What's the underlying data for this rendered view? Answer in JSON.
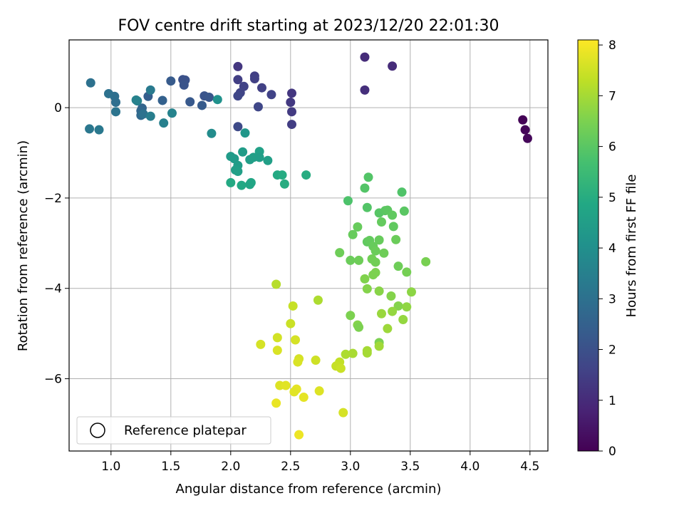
{
  "chart_data": {
    "type": "scatter",
    "title": "FOV centre drift starting at 2023/12/20 22:01:30",
    "xlabel": "Angular distance from reference (arcmin)",
    "ylabel": "Rotation from reference (arcmin)",
    "xlim": [
      0.65,
      4.65
    ],
    "ylim": [
      -7.6,
      1.5
    ],
    "xticks": [
      "1.0",
      "1.5",
      "2.0",
      "2.5",
      "3.0",
      "3.5",
      "4.0",
      "4.5"
    ],
    "xtick_values": [
      1.0,
      1.5,
      2.0,
      2.5,
      3.0,
      3.5,
      4.0,
      4.5
    ],
    "yticks": [
      "−6",
      "−4",
      "−2",
      "0"
    ],
    "ytick_values": [
      -6,
      -4,
      -2,
      0
    ],
    "grid": true,
    "legend": {
      "position": "lower-left",
      "entries": [
        "Reference platepar"
      ]
    },
    "colorbar": {
      "label": "Hours from first FF file",
      "range": [
        0,
        8.1
      ],
      "ticks": [
        "0",
        "1",
        "2",
        "3",
        "4",
        "5",
        "6",
        "7",
        "8"
      ],
      "tick_values": [
        0,
        1,
        2,
        3,
        4,
        5,
        6,
        7,
        8
      ],
      "colormap": "viridis"
    },
    "points": [
      {
        "x": 4.44,
        "y": -0.27,
        "t": 0.05
      },
      {
        "x": 4.46,
        "y": -0.49,
        "t": 0.1
      },
      {
        "x": 4.48,
        "y": -0.68,
        "t": 0.15
      },
      {
        "x": 3.12,
        "y": 1.12,
        "t": 1.0
      },
      {
        "x": 3.35,
        "y": 0.92,
        "t": 1.0
      },
      {
        "x": 3.12,
        "y": 0.39,
        "t": 1.1
      },
      {
        "x": 2.06,
        "y": 0.91,
        "t": 1.3
      },
      {
        "x": 2.51,
        "y": 0.32,
        "t": 1.3
      },
      {
        "x": 2.5,
        "y": 0.12,
        "t": 1.35
      },
      {
        "x": 2.51,
        "y": -0.09,
        "t": 1.4
      },
      {
        "x": 2.51,
        "y": -0.37,
        "t": 1.45
      },
      {
        "x": 2.06,
        "y": 0.62,
        "t": 1.5
      },
      {
        "x": 2.2,
        "y": 0.7,
        "t": 1.5
      },
      {
        "x": 2.2,
        "y": 0.64,
        "t": 1.55
      },
      {
        "x": 2.26,
        "y": 0.44,
        "t": 1.55
      },
      {
        "x": 2.11,
        "y": 0.47,
        "t": 1.6
      },
      {
        "x": 2.08,
        "y": 0.33,
        "t": 1.65
      },
      {
        "x": 2.06,
        "y": 0.26,
        "t": 1.7
      },
      {
        "x": 2.34,
        "y": 0.29,
        "t": 1.6
      },
      {
        "x": 2.23,
        "y": 0.02,
        "t": 1.7
      },
      {
        "x": 2.06,
        "y": -0.42,
        "t": 1.8
      },
      {
        "x": 1.6,
        "y": 0.62,
        "t": 2.0
      },
      {
        "x": 1.62,
        "y": 0.61,
        "t": 2.05
      },
      {
        "x": 1.61,
        "y": 0.5,
        "t": 2.1
      },
      {
        "x": 1.5,
        "y": 0.59,
        "t": 2.3
      },
      {
        "x": 1.78,
        "y": 0.26,
        "t": 2.1
      },
      {
        "x": 1.82,
        "y": 0.23,
        "t": 2.15
      },
      {
        "x": 1.66,
        "y": 0.13,
        "t": 2.25
      },
      {
        "x": 1.76,
        "y": 0.05,
        "t": 2.3
      },
      {
        "x": 1.31,
        "y": 0.25,
        "t": 2.4
      },
      {
        "x": 1.43,
        "y": 0.16,
        "t": 2.5
      },
      {
        "x": 1.26,
        "y": -0.01,
        "t": 2.6
      },
      {
        "x": 1.25,
        "y": -0.07,
        "t": 2.7
      },
      {
        "x": 1.25,
        "y": -0.17,
        "t": 2.75
      },
      {
        "x": 1.04,
        "y": 0.12,
        "t": 2.9
      },
      {
        "x": 1.03,
        "y": 0.25,
        "t": 2.95
      },
      {
        "x": 0.98,
        "y": 0.31,
        "t": 3.0
      },
      {
        "x": 0.83,
        "y": 0.55,
        "t": 3.0
      },
      {
        "x": 1.04,
        "y": -0.09,
        "t": 3.1
      },
      {
        "x": 0.82,
        "y": -0.47,
        "t": 3.2
      },
      {
        "x": 0.9,
        "y": -0.49,
        "t": 3.25
      },
      {
        "x": 1.27,
        "y": -0.14,
        "t": 3.05
      },
      {
        "x": 1.33,
        "y": 0.39,
        "t": 3.3
      },
      {
        "x": 1.22,
        "y": 0.15,
        "t": 3.5
      },
      {
        "x": 1.21,
        "y": 0.17,
        "t": 3.55
      },
      {
        "x": 1.33,
        "y": -0.19,
        "t": 3.45
      },
      {
        "x": 1.44,
        "y": -0.34,
        "t": 3.5
      },
      {
        "x": 1.51,
        "y": -0.12,
        "t": 3.6
      },
      {
        "x": 1.89,
        "y": 0.18,
        "t": 4.1
      },
      {
        "x": 1.84,
        "y": -0.57,
        "t": 3.9
      },
      {
        "x": 2.12,
        "y": -0.56,
        "t": 4.25
      },
      {
        "x": 2.0,
        "y": -1.08,
        "t": 4.4
      },
      {
        "x": 2.03,
        "y": -1.13,
        "t": 4.4
      },
      {
        "x": 2.06,
        "y": -1.28,
        "t": 4.45
      },
      {
        "x": 2.04,
        "y": -1.38,
        "t": 4.5
      },
      {
        "x": 2.06,
        "y": -1.41,
        "t": 4.55
      },
      {
        "x": 2.1,
        "y": -0.98,
        "t": 4.45
      },
      {
        "x": 2.16,
        "y": -1.15,
        "t": 4.5
      },
      {
        "x": 2.19,
        "y": -1.1,
        "t": 4.55
      },
      {
        "x": 2.24,
        "y": -0.97,
        "t": 4.6
      },
      {
        "x": 2.24,
        "y": -1.1,
        "t": 4.5
      },
      {
        "x": 2.31,
        "y": -1.17,
        "t": 4.55
      },
      {
        "x": 2.17,
        "y": -1.66,
        "t": 4.8
      },
      {
        "x": 2.16,
        "y": -1.7,
        "t": 4.75
      },
      {
        "x": 2.09,
        "y": -1.72,
        "t": 4.85
      },
      {
        "x": 2.0,
        "y": -1.66,
        "t": 4.9
      },
      {
        "x": 2.39,
        "y": -1.49,
        "t": 4.9
      },
      {
        "x": 2.43,
        "y": -1.49,
        "t": 4.95
      },
      {
        "x": 2.45,
        "y": -1.69,
        "t": 5.0
      },
      {
        "x": 2.63,
        "y": -1.49,
        "t": 5.0
      },
      {
        "x": 3.15,
        "y": -1.54,
        "t": 5.9
      },
      {
        "x": 3.12,
        "y": -1.78,
        "t": 5.9
      },
      {
        "x": 3.43,
        "y": -1.87,
        "t": 5.85
      },
      {
        "x": 2.98,
        "y": -2.06,
        "t": 5.8
      },
      {
        "x": 3.14,
        "y": -2.21,
        "t": 5.9
      },
      {
        "x": 3.24,
        "y": -2.33,
        "t": 5.95
      },
      {
        "x": 3.29,
        "y": -2.28,
        "t": 6.0
      },
      {
        "x": 3.31,
        "y": -2.27,
        "t": 6.05
      },
      {
        "x": 3.35,
        "y": -2.38,
        "t": 6.1
      },
      {
        "x": 3.45,
        "y": -2.29,
        "t": 6.0
      },
      {
        "x": 3.26,
        "y": -2.53,
        "t": 6.15
      },
      {
        "x": 3.36,
        "y": -2.63,
        "t": 6.1
      },
      {
        "x": 3.06,
        "y": -2.64,
        "t": 6.2
      },
      {
        "x": 3.02,
        "y": -2.81,
        "t": 6.2
      },
      {
        "x": 3.14,
        "y": -2.97,
        "t": 6.1
      },
      {
        "x": 3.16,
        "y": -2.94,
        "t": 6.15
      },
      {
        "x": 3.24,
        "y": -2.93,
        "t": 6.2
      },
      {
        "x": 3.38,
        "y": -2.92,
        "t": 6.25
      },
      {
        "x": 3.19,
        "y": -3.07,
        "t": 6.2
      },
      {
        "x": 3.21,
        "y": -3.17,
        "t": 6.25
      },
      {
        "x": 3.28,
        "y": -3.22,
        "t": 6.3
      },
      {
        "x": 2.91,
        "y": -3.21,
        "t": 6.3
      },
      {
        "x": 3.0,
        "y": -3.38,
        "t": 6.25
      },
      {
        "x": 3.07,
        "y": -3.38,
        "t": 6.3
      },
      {
        "x": 3.18,
        "y": -3.35,
        "t": 6.35
      },
      {
        "x": 3.21,
        "y": -3.42,
        "t": 6.35
      },
      {
        "x": 3.4,
        "y": -3.51,
        "t": 6.3
      },
      {
        "x": 3.47,
        "y": -3.64,
        "t": 6.4
      },
      {
        "x": 3.63,
        "y": -3.41,
        "t": 6.45
      },
      {
        "x": 3.19,
        "y": -3.7,
        "t": 6.5
      },
      {
        "x": 3.21,
        "y": -3.65,
        "t": 6.5
      },
      {
        "x": 3.12,
        "y": -3.79,
        "t": 6.55
      },
      {
        "x": 3.14,
        "y": -4.01,
        "t": 6.6
      },
      {
        "x": 3.24,
        "y": -4.06,
        "t": 6.65
      },
      {
        "x": 3.34,
        "y": -4.17,
        "t": 6.6
      },
      {
        "x": 3.51,
        "y": -4.08,
        "t": 6.7
      },
      {
        "x": 3.4,
        "y": -4.39,
        "t": 6.6
      },
      {
        "x": 3.47,
        "y": -4.41,
        "t": 6.75
      },
      {
        "x": 3.35,
        "y": -4.51,
        "t": 6.8
      },
      {
        "x": 3.26,
        "y": -4.56,
        "t": 6.85
      },
      {
        "x": 3.44,
        "y": -4.69,
        "t": 6.8
      },
      {
        "x": 3.0,
        "y": -4.6,
        "t": 6.5
      },
      {
        "x": 3.06,
        "y": -4.81,
        "t": 6.6
      },
      {
        "x": 3.07,
        "y": -4.86,
        "t": 6.5
      },
      {
        "x": 3.31,
        "y": -4.89,
        "t": 6.9
      },
      {
        "x": 3.24,
        "y": -5.2,
        "t": 6.5
      },
      {
        "x": 3.24,
        "y": -5.28,
        "t": 6.95
      },
      {
        "x": 3.14,
        "y": -5.38,
        "t": 7.0
      },
      {
        "x": 3.14,
        "y": -5.43,
        "t": 7.0
      },
      {
        "x": 3.02,
        "y": -5.44,
        "t": 7.05
      },
      {
        "x": 2.96,
        "y": -5.46,
        "t": 7.1
      },
      {
        "x": 2.73,
        "y": -4.26,
        "t": 7.1
      },
      {
        "x": 2.38,
        "y": -3.91,
        "t": 7.2
      },
      {
        "x": 2.52,
        "y": -4.39,
        "t": 7.4
      },
      {
        "x": 2.5,
        "y": -4.78,
        "t": 7.45
      },
      {
        "x": 2.39,
        "y": -5.09,
        "t": 7.55
      },
      {
        "x": 2.54,
        "y": -5.14,
        "t": 7.6
      },
      {
        "x": 2.25,
        "y": -5.24,
        "t": 7.6
      },
      {
        "x": 2.39,
        "y": -5.37,
        "t": 7.65
      },
      {
        "x": 2.57,
        "y": -5.56,
        "t": 7.6
      },
      {
        "x": 2.56,
        "y": -5.63,
        "t": 7.65
      },
      {
        "x": 2.71,
        "y": -5.59,
        "t": 7.5
      },
      {
        "x": 2.91,
        "y": -5.63,
        "t": 7.35
      },
      {
        "x": 2.88,
        "y": -5.72,
        "t": 7.4
      },
      {
        "x": 2.92,
        "y": -5.77,
        "t": 7.45
      },
      {
        "x": 2.41,
        "y": -6.15,
        "t": 7.7
      },
      {
        "x": 2.46,
        "y": -6.15,
        "t": 7.75
      },
      {
        "x": 2.55,
        "y": -6.23,
        "t": 7.8
      },
      {
        "x": 2.53,
        "y": -6.29,
        "t": 7.75
      },
      {
        "x": 2.74,
        "y": -6.27,
        "t": 7.7
      },
      {
        "x": 2.61,
        "y": -6.41,
        "t": 7.8
      },
      {
        "x": 2.38,
        "y": -6.54,
        "t": 7.85
      },
      {
        "x": 2.94,
        "y": -6.75,
        "t": 7.6
      },
      {
        "x": 2.57,
        "y": -7.24,
        "t": 7.9
      }
    ]
  }
}
